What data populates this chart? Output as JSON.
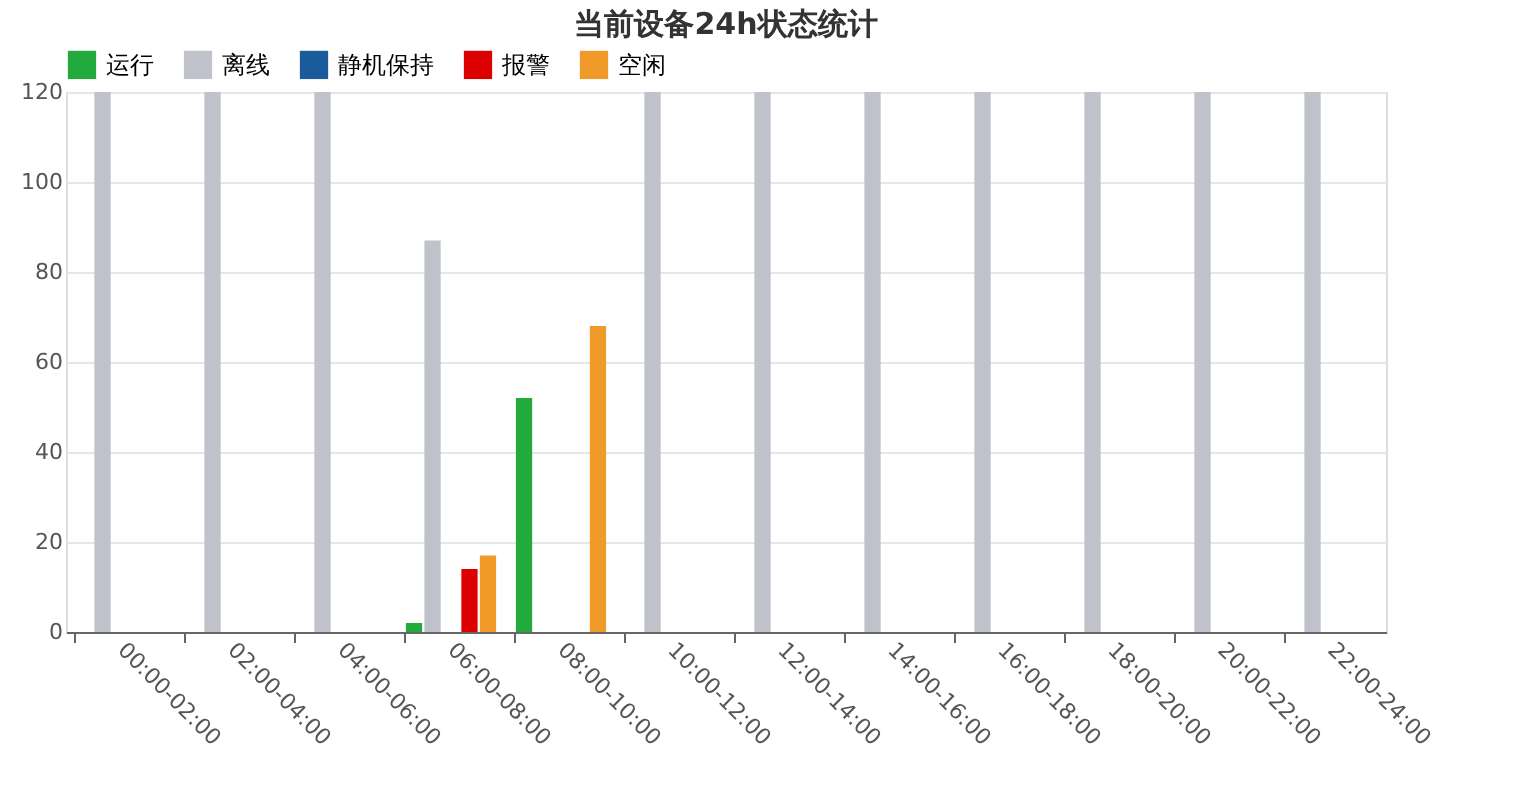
{
  "chart_data": {
    "type": "bar",
    "title": "当前设备24h状态统计",
    "categories": [
      "00:00-02:00",
      "02:00-04:00",
      "04:00-06:00",
      "06:00-08:00",
      "08:00-10:00",
      "10:00-12:00",
      "12:00-14:00",
      "14:00-16:00",
      "16:00-18:00",
      "18:00-20:00",
      "20:00-22:00",
      "22:00-24:00"
    ],
    "series": [
      {
        "name": "运行",
        "color": "#22ab3c",
        "values": [
          0,
          0,
          0,
          2,
          52,
          0,
          0,
          0,
          0,
          0,
          0,
          0
        ]
      },
      {
        "name": "离线",
        "color": "#bfc2ca",
        "values": [
          120,
          120,
          120,
          87,
          0,
          120,
          120,
          120,
          120,
          120,
          120,
          120
        ]
      },
      {
        "name": "静机保持",
        "color": "#1a5b9c",
        "values": [
          0,
          0,
          0,
          0,
          0,
          0,
          0,
          0,
          0,
          0,
          0,
          0
        ]
      },
      {
        "name": "报警",
        "color": "#dc0000",
        "values": [
          0,
          0,
          0,
          14,
          0,
          0,
          0,
          0,
          0,
          0,
          0,
          0
        ]
      },
      {
        "name": "空闲",
        "color": "#f09b29",
        "values": [
          0,
          0,
          0,
          17,
          68,
          0,
          0,
          0,
          0,
          0,
          0,
          0
        ]
      }
    ],
    "ylim": [
      0,
      120
    ],
    "yticks": [
      0,
      20,
      40,
      60,
      80,
      100,
      120
    ],
    "grid": "y",
    "legend": "top"
  }
}
